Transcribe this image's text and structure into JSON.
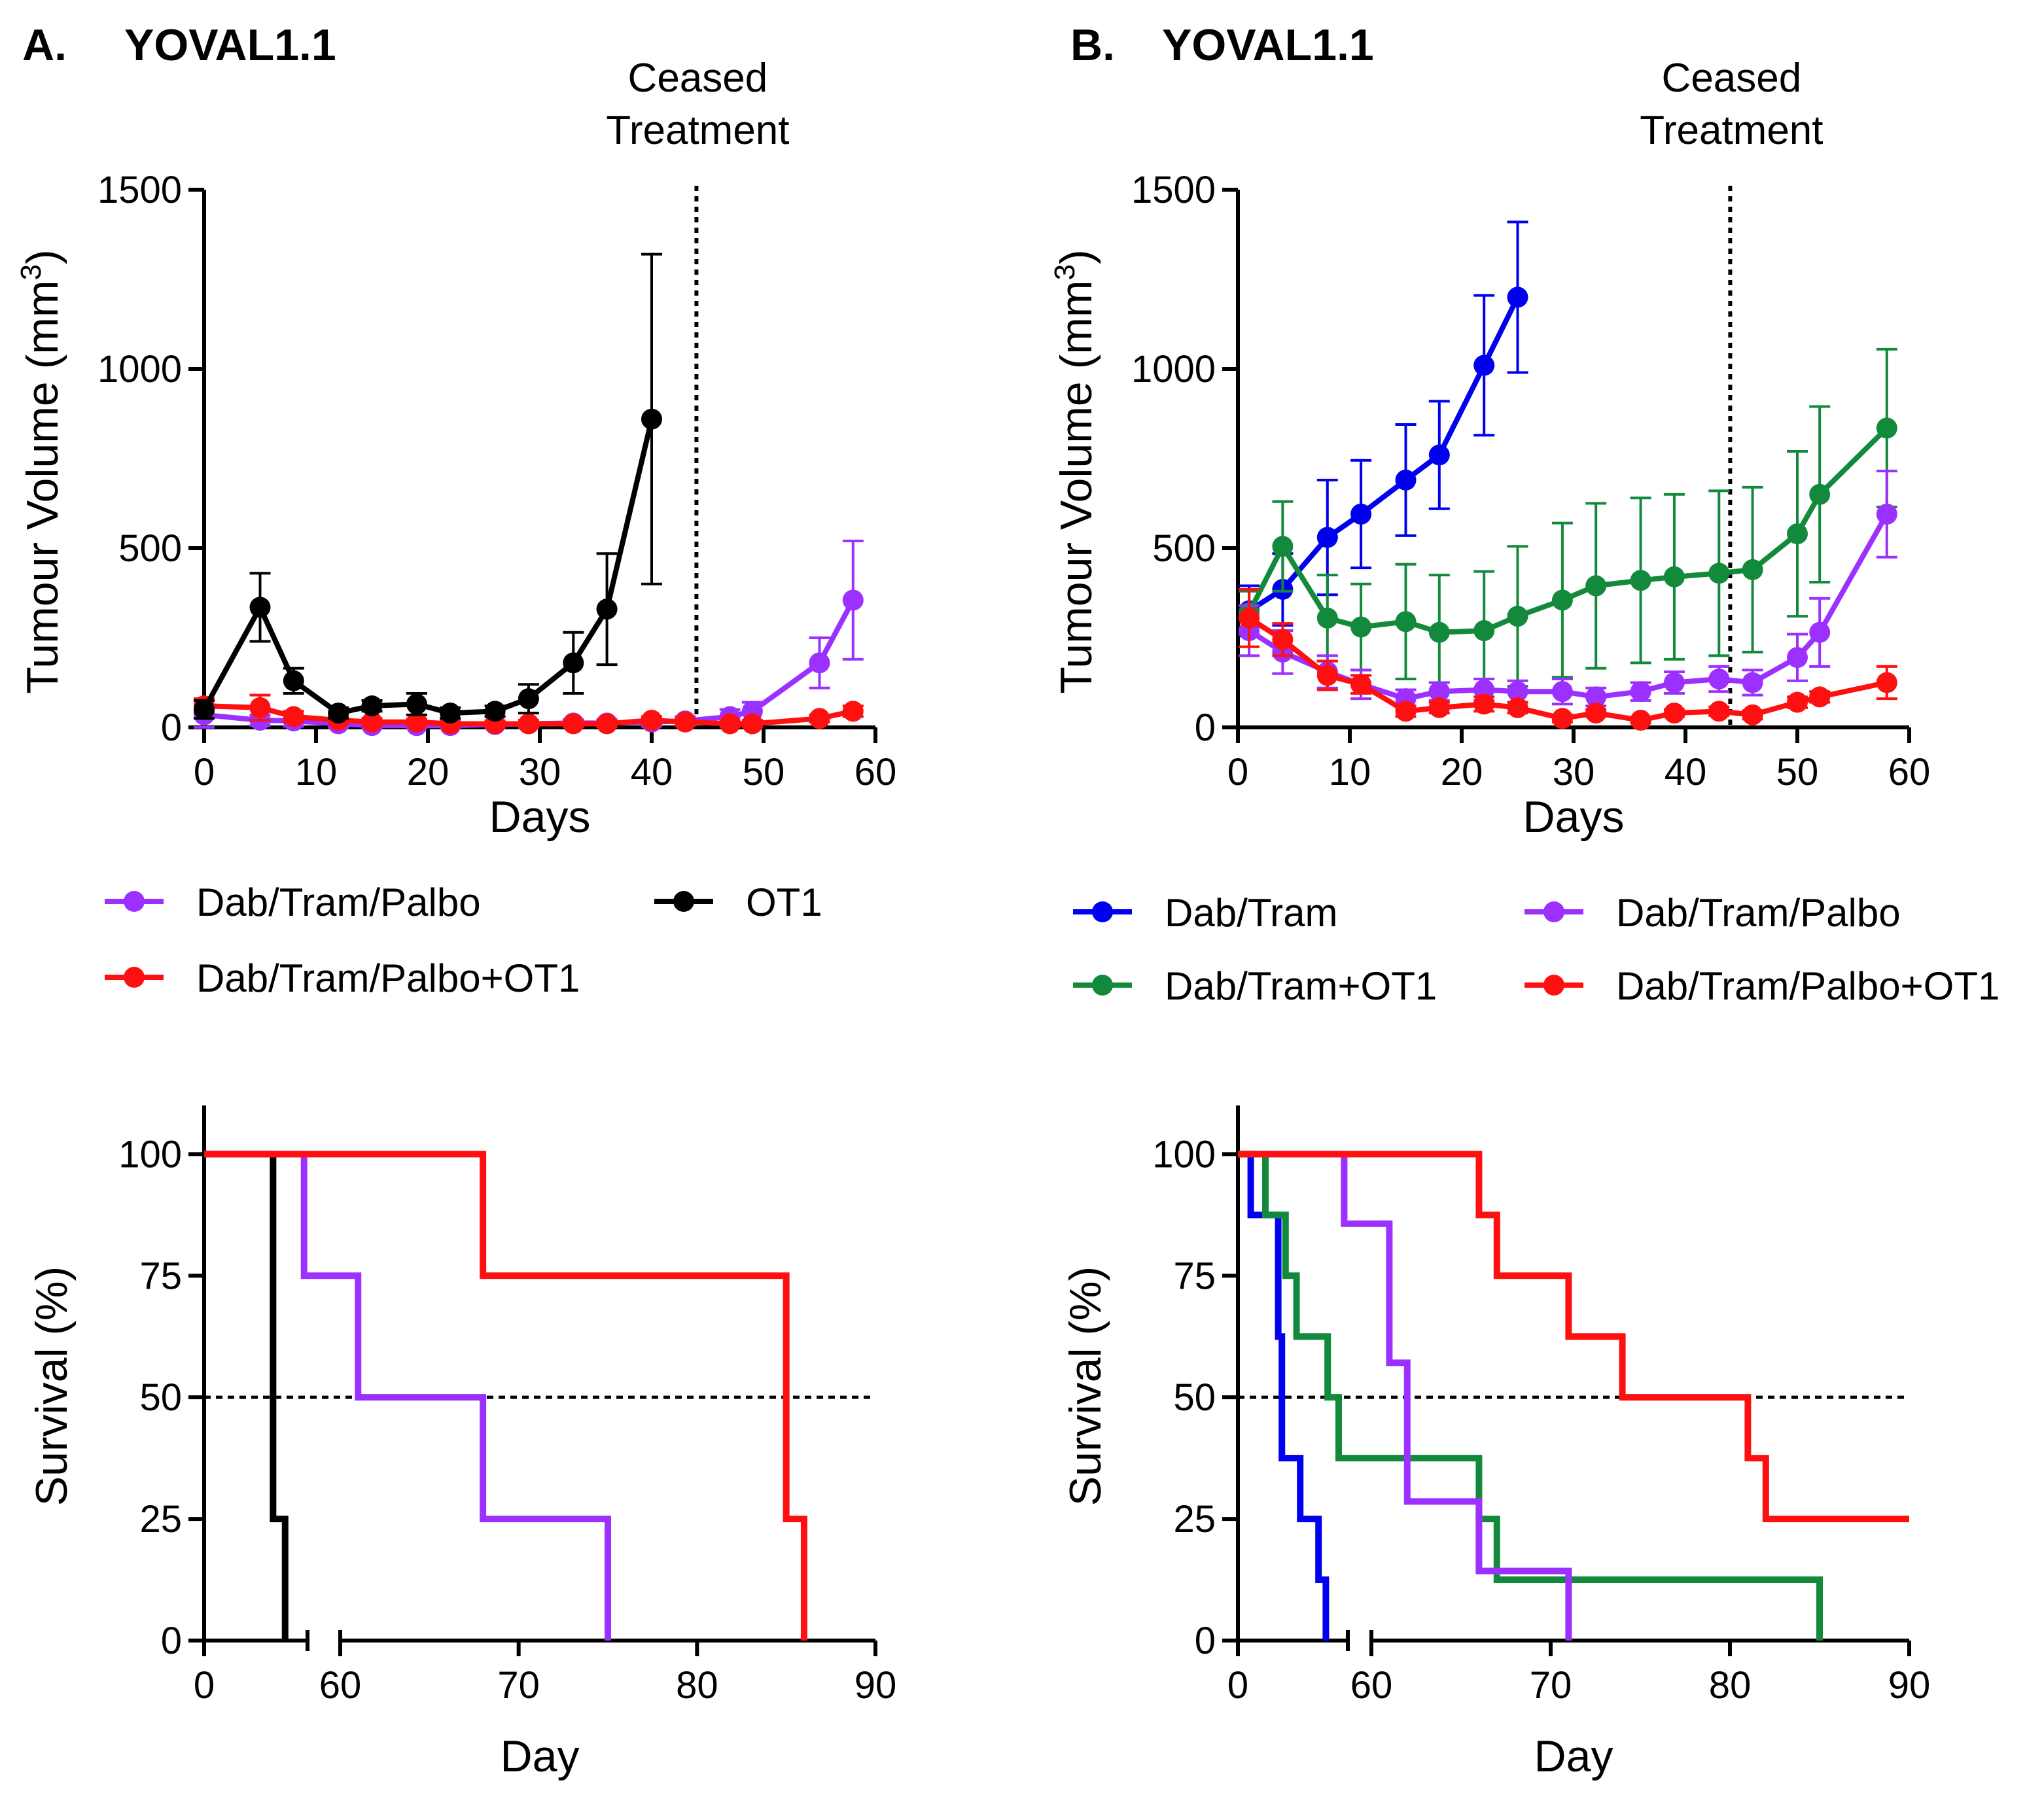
{
  "colors": {
    "dab_tram": "#0000ee",
    "dab_tram_ot1": "#138a3b",
    "dab_tram_palbo": "#9b30ff",
    "dab_tram_palbo_ot1": "#ff1010",
    "ot1": "#000000"
  },
  "panels": {
    "A": {
      "label": "A.",
      "title": "YOVAL1.1"
    },
    "B": {
      "label": "B.",
      "title": "YOVAL1.1"
    }
  },
  "chart_data": [
    {
      "id": "A-tumour",
      "type": "line",
      "xlabel": "Days",
      "ylabel": "Tumour Volume (mm",
      "ylabel_superscript": "3",
      "ylabel_close": ")",
      "xlim": [
        0,
        60
      ],
      "ylim": [
        0,
        1500
      ],
      "xticks": [
        0,
        10,
        20,
        30,
        40,
        50,
        60
      ],
      "yticks": [
        0,
        500,
        1000,
        1500
      ],
      "annotation": {
        "line1": "Ceased",
        "line2": "Treatment",
        "x": 44
      },
      "series": [
        {
          "name": "Dab/Tram/Palbo",
          "color_key": "dab_tram_palbo",
          "x": [
            0,
            5,
            8,
            12,
            15,
            19,
            22,
            26,
            29,
            33,
            36,
            40,
            43,
            47,
            49,
            55,
            58
          ],
          "y": [
            35,
            20,
            18,
            10,
            5,
            5,
            5,
            8,
            10,
            12,
            12,
            15,
            18,
            30,
            45,
            180,
            355
          ],
          "err": [
            40,
            15,
            15,
            10,
            10,
            8,
            8,
            8,
            10,
            10,
            10,
            12,
            12,
            20,
            25,
            70,
            165
          ]
        },
        {
          "name": "Dab/Tram/Palbo+OT1",
          "color_key": "dab_tram_palbo_ot1",
          "x": [
            0,
            5,
            8,
            12,
            15,
            19,
            22,
            26,
            29,
            33,
            36,
            40,
            43,
            47,
            49,
            55,
            58
          ],
          "y": [
            60,
            55,
            30,
            20,
            15,
            15,
            10,
            10,
            10,
            10,
            10,
            20,
            15,
            10,
            10,
            25,
            45
          ],
          "err": [
            20,
            35,
            15,
            10,
            10,
            8,
            8,
            8,
            8,
            8,
            8,
            10,
            10,
            8,
            8,
            10,
            15
          ]
        },
        {
          "name": "OT1",
          "color_key": "ot1",
          "x": [
            0,
            5,
            8,
            12,
            15,
            19,
            22,
            26,
            29,
            33,
            36,
            40
          ],
          "y": [
            50,
            335,
            130,
            40,
            60,
            65,
            40,
            45,
            80,
            180,
            330,
            860
          ],
          "err": [
            25,
            95,
            35,
            15,
            15,
            30,
            15,
            15,
            40,
            85,
            155,
            460
          ]
        }
      ],
      "legend": [
        {
          "label": "Dab/Tram/Palbo",
          "color_key": "dab_tram_palbo"
        },
        {
          "label": "OT1",
          "color_key": "ot1"
        },
        {
          "label": "Dab/Tram/Palbo+OT1",
          "color_key": "dab_tram_palbo_ot1"
        }
      ]
    },
    {
      "id": "B-tumour",
      "type": "line",
      "xlabel": "Days",
      "ylabel": "Tumour Volume (mm",
      "ylabel_superscript": "3",
      "ylabel_close": ")",
      "xlim": [
        0,
        60
      ],
      "ylim": [
        0,
        1500
      ],
      "xticks": [
        0,
        10,
        20,
        30,
        40,
        50,
        60
      ],
      "yticks": [
        0,
        500,
        1000,
        1500
      ],
      "annotation": {
        "line1": "Ceased",
        "line2": "Treatment",
        "x": 44
      },
      "series": [
        {
          "name": "Dab/Tram",
          "color_key": "dab_tram",
          "x": [
            1,
            4,
            8,
            11,
            15,
            18,
            22,
            25
          ],
          "y": [
            325,
            385,
            530,
            595,
            690,
            760,
            1010,
            1200
          ],
          "err": [
            70,
            100,
            160,
            150,
            155,
            150,
            195,
            210
          ]
        },
        {
          "name": "Dab/Tram+OT1",
          "color_key": "dab_tram_ot1",
          "x": [
            1,
            4,
            8,
            11,
            15,
            18,
            22,
            25,
            29,
            32,
            36,
            39,
            43,
            46,
            50,
            52,
            58
          ],
          "y": [
            320,
            505,
            305,
            280,
            295,
            265,
            270,
            310,
            355,
            395,
            410,
            420,
            430,
            440,
            540,
            650,
            835
          ],
          "err": [
            60,
            125,
            120,
            120,
            160,
            160,
            165,
            195,
            215,
            230,
            230,
            230,
            230,
            230,
            230,
            245,
            220
          ]
        },
        {
          "name": "Dab/Tram/Palbo",
          "color_key": "dab_tram_palbo",
          "x": [
            1,
            4,
            8,
            11,
            15,
            18,
            22,
            25,
            29,
            32,
            36,
            39,
            43,
            46,
            50,
            52,
            58
          ],
          "y": [
            270,
            210,
            155,
            120,
            80,
            100,
            105,
            100,
            100,
            85,
            100,
            125,
            135,
            125,
            195,
            265,
            595
          ],
          "err": [
            70,
            60,
            45,
            40,
            25,
            25,
            30,
            30,
            35,
            25,
            25,
            30,
            35,
            35,
            65,
            95,
            120
          ]
        },
        {
          "name": "Dab/Tram/Palbo+OT1",
          "color_key": "dab_tram_palbo_ot1",
          "x": [
            1,
            4,
            8,
            11,
            15,
            18,
            22,
            25,
            29,
            32,
            36,
            39,
            43,
            46,
            50,
            52,
            58
          ],
          "y": [
            305,
            245,
            145,
            120,
            45,
            55,
            65,
            55,
            25,
            40,
            20,
            40,
            45,
            35,
            70,
            85,
            125
          ],
          "err": [
            80,
            45,
            40,
            25,
            15,
            15,
            20,
            15,
            10,
            10,
            8,
            10,
            12,
            12,
            15,
            15,
            45
          ]
        }
      ],
      "legend": [
        {
          "label": "Dab/Tram",
          "color_key": "dab_tram"
        },
        {
          "label": "Dab/Tram/Palbo",
          "color_key": "dab_tram_palbo"
        },
        {
          "label": "Dab/Tram+OT1",
          "color_key": "dab_tram_ot1"
        },
        {
          "label": "Dab/Tram/Palbo+OT1",
          "color_key": "dab_tram_palbo_ot1"
        }
      ]
    },
    {
      "id": "A-survival",
      "type": "line",
      "xlabel": "Day",
      "ylabel": "Survival (%)",
      "axis_break": {
        "from": 0,
        "to": 60,
        "resume": 60
      },
      "xlim": [
        0,
        90
      ],
      "ylim": [
        0,
        100
      ],
      "xticks": [
        0,
        60,
        70,
        80,
        90
      ],
      "yticks": [
        0,
        25,
        50,
        75,
        100
      ],
      "reference_line_y": 50,
      "series": [
        {
          "name": "OT1",
          "color_key": "ot1",
          "steps": [
            [
              0,
              100
            ],
            [
              40,
              100
            ],
            [
              40,
              25
            ],
            [
              47,
              25
            ],
            [
              47,
              0
            ]
          ]
        },
        {
          "name": "Dab/Tram/Palbo",
          "color_key": "dab_tram_palbo",
          "steps": [
            [
              0,
              100
            ],
            [
              58,
              100
            ],
            [
              58,
              75
            ],
            [
              61,
              75
            ],
            [
              61,
              50
            ],
            [
              68,
              50
            ],
            [
              68,
              25
            ],
            [
              75,
              25
            ],
            [
              75,
              0
            ]
          ]
        },
        {
          "name": "Dab/Tram/Palbo+OT1",
          "color_key": "dab_tram_palbo_ot1",
          "steps": [
            [
              0,
              100
            ],
            [
              68,
              100
            ],
            [
              68,
              75
            ],
            [
              85,
              75
            ],
            [
              85,
              25
            ],
            [
              86,
              25
            ],
            [
              86,
              0
            ]
          ]
        }
      ]
    },
    {
      "id": "B-survival",
      "type": "line",
      "xlabel": "Day",
      "ylabel": "Survival (%)",
      "axis_break": {
        "from": 0,
        "to": 60,
        "resume": 60
      },
      "xlim": [
        0,
        90
      ],
      "ylim": [
        0,
        100
      ],
      "xticks": [
        0,
        60,
        70,
        80,
        90
      ],
      "yticks": [
        0,
        25,
        50,
        75,
        100
      ],
      "reference_line_y": 50,
      "series": [
        {
          "name": "Dab/Tram",
          "color_key": "dab_tram",
          "steps": [
            [
              0,
              100
            ],
            [
              7,
              100
            ],
            [
              7,
              87.5
            ],
            [
              22,
              87.5
            ],
            [
              22,
              62.5
            ],
            [
              24,
              62.5
            ],
            [
              24,
              37.5
            ],
            [
              34,
              37.5
            ],
            [
              34,
              25
            ],
            [
              44,
              25
            ],
            [
              44,
              12.5
            ],
            [
              48,
              12.5
            ],
            [
              48,
              0
            ]
          ]
        },
        {
          "name": "Dab/Tram+OT1",
          "color_key": "dab_tram_ot1",
          "steps": [
            [
              0,
              100
            ],
            [
              15,
              100
            ],
            [
              15,
              87.5
            ],
            [
              26,
              87.5
            ],
            [
              26,
              75
            ],
            [
              32,
              75
            ],
            [
              32,
              62.5
            ],
            [
              49,
              62.5
            ],
            [
              49,
              50
            ],
            [
              55,
              50
            ],
            [
              55,
              37.5
            ],
            [
              66,
              37.5
            ],
            [
              66,
              25
            ],
            [
              67,
              25
            ],
            [
              67,
              12.5
            ],
            [
              85,
              12.5
            ],
            [
              85,
              0
            ]
          ]
        },
        {
          "name": "Dab/Tram/Palbo",
          "color_key": "dab_tram_palbo",
          "steps": [
            [
              0,
              100
            ],
            [
              58,
              100
            ],
            [
              58,
              85.7
            ],
            [
              61,
              85.7
            ],
            [
              61,
              57.1
            ],
            [
              62,
              57.1
            ],
            [
              62,
              28.6
            ],
            [
              66,
              28.6
            ],
            [
              66,
              14.3
            ],
            [
              71,
              14.3
            ],
            [
              71,
              0
            ]
          ]
        },
        {
          "name": "Dab/Tram/Palbo+OT1",
          "color_key": "dab_tram_palbo_ot1",
          "steps": [
            [
              0,
              100
            ],
            [
              66,
              100
            ],
            [
              66,
              87.5
            ],
            [
              67,
              87.5
            ],
            [
              67,
              75
            ],
            [
              71,
              75
            ],
            [
              71,
              62.5
            ],
            [
              74,
              62.5
            ],
            [
              74,
              50
            ],
            [
              81,
              50
            ],
            [
              81,
              37.5
            ],
            [
              82,
              37.5
            ],
            [
              82,
              25
            ],
            [
              90,
              25
            ]
          ]
        }
      ]
    }
  ]
}
